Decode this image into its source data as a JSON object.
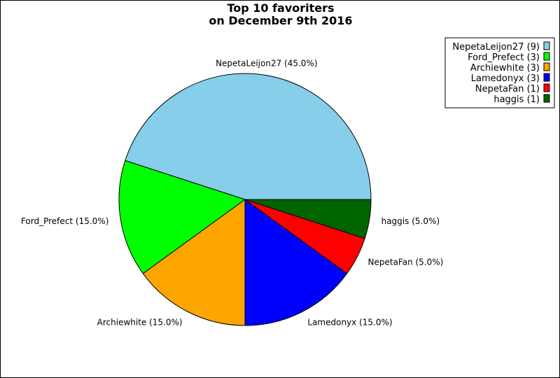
{
  "chart_data": {
    "type": "pie",
    "title": [
      "Top 10 favoriters",
      "on December 9th 2016"
    ],
    "slices": [
      {
        "label": "NepetaLeijon27",
        "count": 9,
        "percent_label": "NepetaLeijon27 (45.0%)",
        "legend_label": "NepetaLeijon27 (9)",
        "color": "#87CEEB"
      },
      {
        "label": "Ford_Prefect",
        "count": 3,
        "percent_label": "Ford_Prefect (15.0%)",
        "legend_label": "Ford_Prefect (3)",
        "color": "#00FF00"
      },
      {
        "label": "Archiewhite",
        "count": 3,
        "percent_label": "Archiewhite (15.0%)",
        "legend_label": "Archiewhite (3)",
        "color": "#FFA500"
      },
      {
        "label": "Lamedonyx",
        "count": 3,
        "percent_label": "Lamedonyx (15.0%)",
        "legend_label": "Lamedonyx (3)",
        "color": "#0000FF"
      },
      {
        "label": "NepetaFan",
        "count": 1,
        "percent_label": "NepetaFan (5.0%)",
        "legend_label": "NepetaFan (1)",
        "color": "#FF0000"
      },
      {
        "label": "haggis",
        "count": 1,
        "percent_label": "haggis (5.0%)",
        "legend_label": "haggis (1)",
        "color": "#006400"
      }
    ],
    "legend_placement": "top-right",
    "start_angle_deg": 0,
    "direction": "counterclockwise"
  }
}
